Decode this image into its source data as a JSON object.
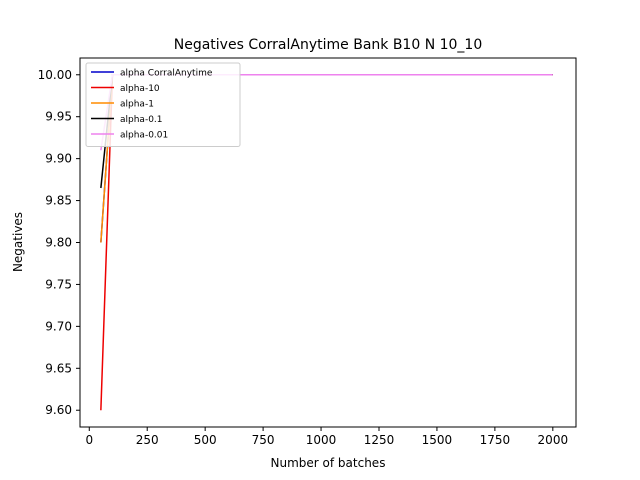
{
  "chart_data": {
    "type": "line",
    "title": "Negatives CorralAnytime Bank B10 N 10_10",
    "xlabel": "Number of batches",
    "ylabel": "Negatives",
    "xlim": [
      -40,
      2100
    ],
    "ylim": [
      9.58,
      10.02
    ],
    "xticks": [
      0,
      250,
      500,
      750,
      1000,
      1250,
      1500,
      1750,
      2000
    ],
    "xtick_labels": [
      "0",
      "250",
      "500",
      "750",
      "1000",
      "1250",
      "1500",
      "1750",
      "2000"
    ],
    "yticks": [
      9.6,
      9.65,
      9.7,
      9.75,
      9.8,
      9.85,
      9.9,
      9.95,
      10.0
    ],
    "ytick_labels": [
      "9.60",
      "9.65",
      "9.70",
      "9.75",
      "9.80",
      "9.85",
      "9.90",
      "9.95",
      "10.00"
    ],
    "grid": false,
    "legend_position": "top-left",
    "series": [
      {
        "name": "alpha CorralAnytime",
        "color": "#0000cc",
        "x": [
          50,
          100,
          2000
        ],
        "y": [
          9.8,
          10.0,
          10.0
        ]
      },
      {
        "name": "alpha-10",
        "color": "#ee0000",
        "x": [
          50,
          100,
          2000
        ],
        "y": [
          9.6,
          10.0,
          10.0
        ]
      },
      {
        "name": "alpha-1",
        "color": "#ff8c00",
        "x": [
          50,
          100,
          2000
        ],
        "y": [
          9.8,
          10.0,
          10.0
        ]
      },
      {
        "name": "alpha-0.1",
        "color": "#000000",
        "x": [
          50,
          100,
          2000
        ],
        "y": [
          9.865,
          10.0,
          10.0
        ]
      },
      {
        "name": "alpha-0.01",
        "color": "#ee82ee",
        "x": [
          50,
          100,
          2000
        ],
        "y": [
          9.91,
          10.0,
          10.0
        ]
      }
    ]
  }
}
